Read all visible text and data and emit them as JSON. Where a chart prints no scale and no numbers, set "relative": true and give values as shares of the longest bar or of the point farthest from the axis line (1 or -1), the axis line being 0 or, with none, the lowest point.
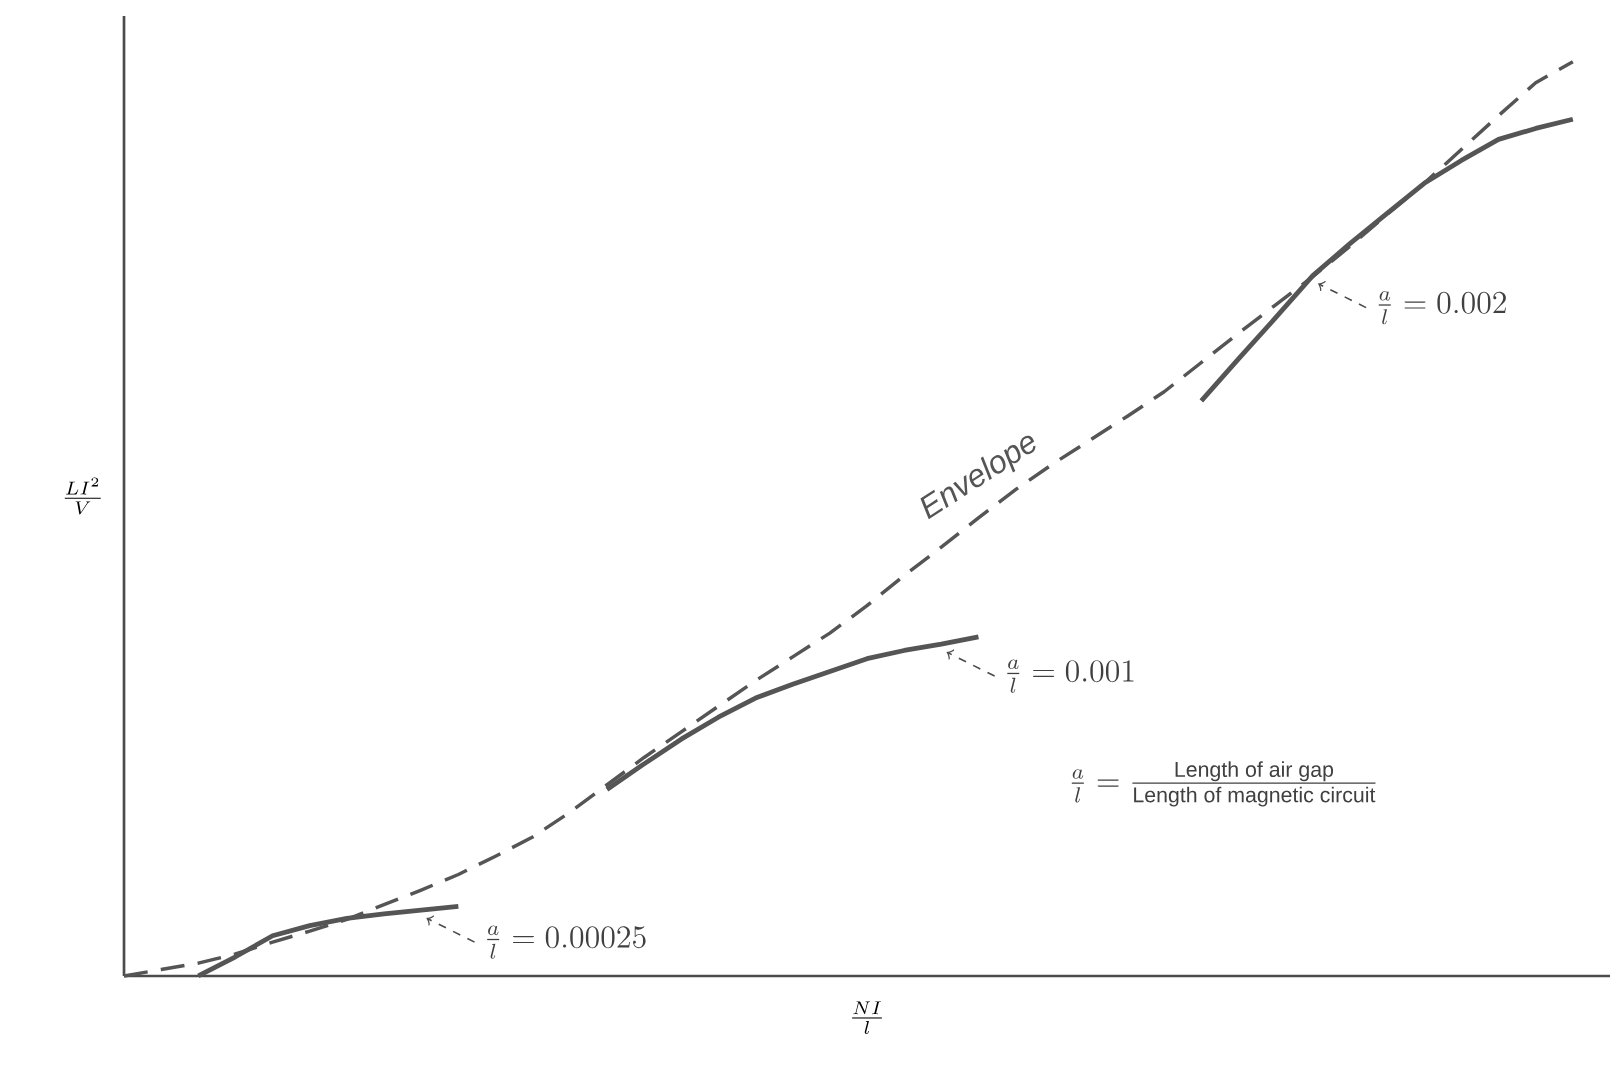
{
  "chart_data": {
    "type": "line",
    "relative": true,
    "tick_labels": false,
    "xlabel": "\\frac{NI}{l}",
    "ylabel": "\\frac{LI^{2}}{V}",
    "categories": [
      null,
      null,
      null,
      null,
      null,
      null,
      null,
      null,
      null,
      null,
      null,
      null,
      null,
      null,
      null,
      null,
      null,
      null,
      null,
      null,
      null,
      null,
      null,
      null,
      null,
      null,
      null,
      null,
      null,
      null,
      null,
      null,
      null,
      null,
      null,
      null,
      null,
      null,
      null,
      null
    ],
    "series": [
      {
        "name": "Envelope",
        "color": "#555555",
        "line_style": "dashed",
        "values": [
          0,
          0.007,
          0.014,
          0.024,
          0.037,
          0.049,
          0.062,
          0.078,
          0.094,
          0.111,
          0.131,
          0.152,
          0.179,
          0.209,
          0.239,
          0.267,
          0.295,
          0.323,
          0.349,
          0.375,
          0.405,
          0.438,
          0.469,
          0.501,
          0.532,
          0.56,
          0.586,
          0.612,
          0.639,
          0.671,
          0.703,
          0.734,
          0.765,
          0.798,
          0.833,
          0.867,
          0.904,
          0.941,
          0.977,
          1
        ]
      },
      {
        "color": "#555555",
        "line_style": "solid",
        "values": [
          null,
          null,
          0,
          0.021,
          0.044,
          0.055,
          0.063,
          0.068,
          0.072,
          0.076,
          null,
          null,
          null,
          null,
          null,
          null,
          null,
          null,
          null,
          null,
          null,
          null,
          null,
          null,
          null,
          null,
          null,
          null,
          null,
          null,
          null,
          null,
          null,
          null,
          null,
          null,
          null,
          null,
          null,
          null
        ]
      },
      {
        "color": "#555555",
        "line_style": "solid",
        "values": [
          null,
          null,
          null,
          null,
          null,
          null,
          null,
          null,
          null,
          null,
          null,
          null,
          null,
          0.204,
          0.232,
          0.259,
          0.283,
          0.304,
          0.319,
          0.333,
          0.347,
          0.356,
          0.363,
          0.371,
          null,
          null,
          null,
          null,
          null,
          null,
          null,
          null,
          null,
          null,
          null,
          null,
          null,
          null,
          null,
          null
        ]
      },
      {
        "color": "#555555",
        "line_style": "solid",
        "values": [
          null,
          null,
          null,
          null,
          null,
          null,
          null,
          null,
          null,
          null,
          null,
          null,
          null,
          null,
          null,
          null,
          null,
          null,
          null,
          null,
          null,
          null,
          null,
          null,
          null,
          null,
          null,
          null,
          null,
          0.629,
          0.675,
          0.72,
          0.766,
          0.801,
          0.834,
          0.867,
          0.892,
          0.915,
          0.927,
          0.937
        ]
      }
    ],
    "annotations": [
      "\\frac{a}{l} = 0.00025",
      "\\frac{a}{l} = 0.001",
      "\\frac{a}{l} = 0.002",
      "\\frac{a}{l} = \\frac{\\text{Length of air gap}}{\\text{Length of magnetic circuit}}"
    ]
  }
}
